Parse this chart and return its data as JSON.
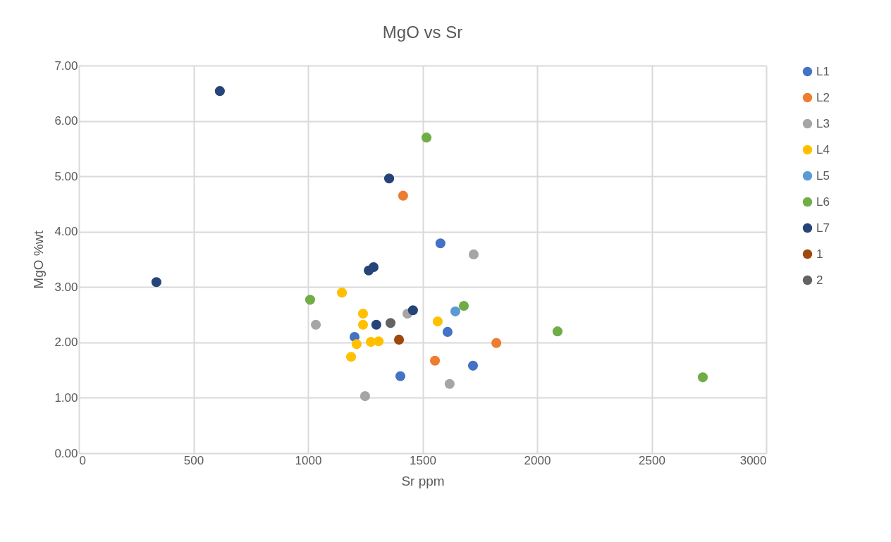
{
  "chart_data": {
    "type": "scatter",
    "title": "MgO vs Sr",
    "xlabel": "Sr ppm",
    "ylabel": "MgO %wt",
    "xlim": [
      0,
      3000
    ],
    "xticks": [
      0,
      500,
      1000,
      1500,
      2000,
      2500,
      3000
    ],
    "ylim": [
      0,
      7
    ],
    "yticks": [
      {
        "value": 0,
        "label": "0.00"
      },
      {
        "value": 1,
        "label": "1.00"
      },
      {
        "value": 2,
        "label": "2.00"
      },
      {
        "value": 3,
        "label": "3.00"
      },
      {
        "value": 4,
        "label": "4.00"
      },
      {
        "value": 5,
        "label": "5.00"
      },
      {
        "value": 6,
        "label": "6.00"
      },
      {
        "value": 7,
        "label": "7.00"
      }
    ],
    "grid": true,
    "legend": "right",
    "marker": "circle",
    "series": [
      {
        "name": "L1",
        "color": "#4472c4",
        "x": [
          1578,
          1203,
          1609,
          1403,
          1720
        ],
        "values": [
          3.79,
          2.1,
          2.19,
          1.39,
          1.58
        ]
      },
      {
        "name": "L2",
        "color": "#ed7d31",
        "x": [
          1415,
          1554,
          1822
        ],
        "values": [
          4.65,
          1.67,
          1.99
        ]
      },
      {
        "name": "L3",
        "color": "#a5a5a5",
        "x": [
          1723,
          1034,
          1434,
          1618,
          1249
        ],
        "values": [
          3.59,
          2.32,
          2.52,
          1.25,
          1.03
        ]
      },
      {
        "name": "L4",
        "color": "#ffc000",
        "x": [
          1148,
          1240,
          1240,
          1212,
          1274,
          1308,
          1188,
          1566
        ],
        "values": [
          2.9,
          2.52,
          2.32,
          1.97,
          2.01,
          2.02,
          1.74,
          2.38
        ]
      },
      {
        "name": "L5",
        "color": "#5b9bd5",
        "x": [
          1643
        ],
        "values": [
          2.56
        ]
      },
      {
        "name": "L6",
        "color": "#70ad47",
        "x": [
          1517,
          1009,
          1680,
          2089,
          2723
        ],
        "values": [
          5.7,
          2.77,
          2.66,
          2.2,
          1.37
        ]
      },
      {
        "name": "L7",
        "color": "#264478",
        "x": [
          615,
          338,
          1354,
          1286,
          1265,
          1298,
          1458
        ],
        "values": [
          6.54,
          3.09,
          4.96,
          3.36,
          3.3,
          2.32,
          2.58
        ]
      },
      {
        "name": "1",
        "color": "#9e480e",
        "x": [
          1397
        ],
        "values": [
          2.05
        ]
      },
      {
        "name": "2",
        "color": "#636363",
        "x": [
          1360
        ],
        "values": [
          2.35
        ]
      }
    ]
  }
}
